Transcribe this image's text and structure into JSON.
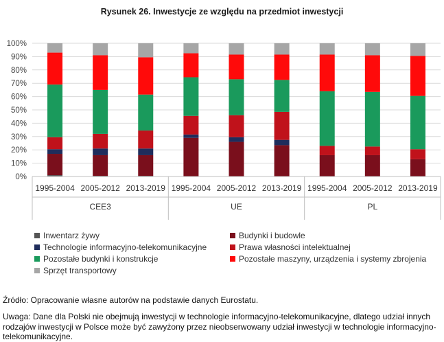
{
  "title": "Rysunek 26. Inwestycje ze względu na przedmiot inwestycji",
  "chart_data": {
    "type": "bar",
    "stacked": true,
    "title": "Rysunek 26. Inwestycje ze względu na przedmiot inwestycji",
    "ylim": [
      0,
      100
    ],
    "yticks": [
      "0%",
      "10%",
      "20%",
      "30%",
      "40%",
      "50%",
      "60%",
      "70%",
      "80%",
      "90%",
      "100%"
    ],
    "groups": [
      "CEE3",
      "UE",
      "PL"
    ],
    "categories": [
      "1995-2004",
      "2005-2012",
      "2013-2019",
      "1995-2004",
      "2005-2012",
      "2013-2019",
      "1995-2004",
      "2005-2012",
      "2013-2019"
    ],
    "series": [
      {
        "name": "Inwentarz żywy",
        "color": "#555555",
        "values": [
          1,
          0.5,
          0.5,
          0,
          0,
          0,
          0,
          0,
          0
        ]
      },
      {
        "name": "Budynki i budowle",
        "color": "#7a0f1c",
        "values": [
          16,
          15.5,
          15.5,
          29,
          26,
          23.5,
          16,
          16,
          13
        ]
      },
      {
        "name": "Technologie informacyjno-telekomunikacyjne",
        "color": "#1f2d5c",
        "values": [
          3.5,
          5,
          5,
          2.5,
          3.5,
          4,
          0,
          0,
          0
        ]
      },
      {
        "name": "Prawa własności intelektualnej",
        "color": "#c0121b",
        "values": [
          9,
          11,
          13.5,
          14,
          16.5,
          21,
          7,
          6.5,
          7.5
        ]
      },
      {
        "name": "Pozostałe budynki i konstrukcje",
        "color": "#1a9a5c",
        "values": [
          39.5,
          33,
          27,
          29,
          27,
          24,
          41,
          41,
          40
        ]
      },
      {
        "name": "Pozostałe maszyny, urządzenia i systemy zbrojenia",
        "color": "#ff0a0a",
        "values": [
          24,
          26,
          28,
          18,
          18.5,
          19,
          27.5,
          27.5,
          30
        ]
      },
      {
        "name": "Sprzęt transportowy",
        "color": "#a6a6a6",
        "values": [
          7,
          9,
          10.5,
          7.5,
          8.5,
          8.5,
          8.5,
          9,
          9.5
        ]
      }
    ]
  },
  "source": "Źródło: Opracowanie własne autorów na podstawie danych Eurostatu.",
  "remark": "Uwaga: Dane dla Polski nie obejmują inwestycji w technologie informacyjno-telekomunikacyjne, dlatego udział innych rodzajów inwestycji w Polsce może być zawyżony przez nieobserwowany udział inwestycji w technologie informacyjno-telekomunikacyjne."
}
